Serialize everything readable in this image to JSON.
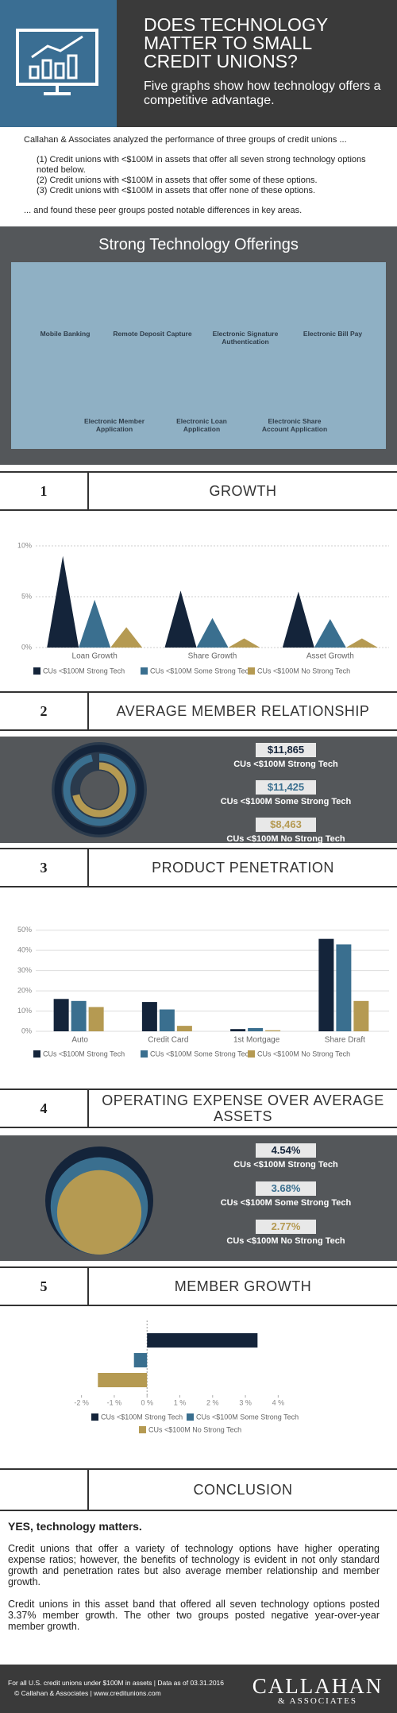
{
  "header": {
    "title": "DOES TECHNOLOGY MATTER TO SMALL CREDIT UNIONS?",
    "subtitle": "Five graphs show how technology offers a competitive advantage."
  },
  "intro": {
    "lead": "Callahan & Associates analyzed the performance of three groups of credit unions ...",
    "items": [
      "(1) Credit unions with <$100M in assets that offer all seven strong technology options noted below.",
      "(2) Credit unions with <$100M in assets that offer some of these options.",
      "(3) Credit unions with <$100M in assets that offer none of these options."
    ],
    "closing": "... and found these peer groups posted notable differences in key areas."
  },
  "offerings": {
    "title": "Strong Technology Offerings",
    "items": [
      "Mobile Banking",
      "Remote Deposit Capture",
      "Electronic Signature Authentication",
      "Electronic Bill Pay",
      "Electronic Member Application",
      "Electronic Loan Application",
      "Electronic Share Account Application"
    ]
  },
  "sections": [
    {
      "number": "1",
      "title": "GROWTH"
    },
    {
      "number": "2",
      "title": "AVERAGE MEMBER RELATIONSHIP"
    },
    {
      "number": "3",
      "title": "PRODUCT PENETRATION"
    },
    {
      "number": "4",
      "title": "OPERATING EXPENSE OVER AVERAGE ASSETS"
    },
    {
      "number": "5",
      "title": "MEMBER GROWTH"
    }
  ],
  "chart_data": [
    {
      "type": "spike",
      "categories": [
        "Loan Growth",
        "Share Growth",
        "Asset Growth"
      ],
      "series": [
        {
          "name": "CUs <$100M Strong Tech",
          "color": "#14243a",
          "values": [
            9.0,
            5.6,
            5.5
          ]
        },
        {
          "name": "CUs <$100M Some Strong Tech",
          "color": "#3a6f8f",
          "values": [
            4.7,
            2.9,
            2.8
          ]
        },
        {
          "name": "CUs <$100M No Strong Tech",
          "color": "#b59a52",
          "values": [
            2.0,
            0.9,
            0.9
          ]
        }
      ],
      "ylim": [
        0,
        10
      ],
      "yticks": [
        {
          "value": 0,
          "label": "0%"
        },
        {
          "value": 5,
          "label": "5%"
        },
        {
          "value": 10,
          "label": "10%"
        }
      ],
      "grid": true
    },
    {
      "type": "rings",
      "categories": [
        "CUs <$100M Strong Tech",
        "CUs <$100M Some Strong Tech",
        "CUs <$100M No Strong Tech"
      ],
      "values": [
        11865,
        11425,
        8463
      ],
      "value_labels": [
        "$11,865",
        "$11,425",
        "$8,463"
      ],
      "colors": [
        "#14243a",
        "#3a6f8f",
        "#b59a52"
      ]
    },
    {
      "type": "bar",
      "categories": [
        "Auto",
        "Credit Card",
        "1st Mortgage",
        "Share Draft"
      ],
      "series": [
        {
          "name": "CUs <$100M Strong Tech",
          "color": "#14243a",
          "values": [
            16,
            14.5,
            1.1,
            45.7
          ]
        },
        {
          "name": "CUs <$100M Some Strong Tech",
          "color": "#3a6f8f",
          "values": [
            15,
            10.8,
            1.6,
            43
          ]
        },
        {
          "name": "CUs <$100M No Strong Tech",
          "color": "#b59a52",
          "values": [
            12,
            2.7,
            0.5,
            15
          ]
        }
      ],
      "ylim": [
        0,
        55
      ],
      "yticks": [
        {
          "value": 0,
          "label": "0%"
        },
        {
          "value": 10,
          "label": "10%"
        },
        {
          "value": 20,
          "label": "20%"
        },
        {
          "value": 30,
          "label": "30%"
        },
        {
          "value": 40,
          "label": "40%"
        },
        {
          "value": 50,
          "label": "50%"
        }
      ],
      "grid": true
    },
    {
      "type": "circles",
      "categories": [
        "CUs <$100M Strong Tech",
        "CUs <$100M Some Strong Tech",
        "CUs <$100M No Strong Tech"
      ],
      "values": [
        4.54,
        3.68,
        2.77
      ],
      "value_labels": [
        "4.54%",
        "3.68%",
        "2.77%"
      ],
      "colors": [
        "#14243a",
        "#3a6f8f",
        "#b59a52"
      ]
    },
    {
      "type": "hbar",
      "series": [
        {
          "name": "CUs <$100M Strong Tech",
          "color": "#14243a",
          "values": [
            3.37
          ]
        },
        {
          "name": "CUs <$100M Some Strong Tech",
          "color": "#3a6f8f",
          "values": [
            -0.4
          ]
        },
        {
          "name": "CUs <$100M No Strong Tech",
          "color": "#b59a52",
          "values": [
            -1.5
          ]
        }
      ],
      "xlim": [
        -2.5,
        4.5
      ],
      "xticks": [
        {
          "value": -2,
          "label": "-2 %"
        },
        {
          "value": -1,
          "label": "-1 %"
        },
        {
          "value": 0,
          "label": "0 %"
        },
        {
          "value": 1,
          "label": "1 %"
        },
        {
          "value": 2,
          "label": "2 %"
        },
        {
          "value": 3,
          "label": "3 %"
        },
        {
          "value": 4,
          "label": "4 %"
        }
      ]
    }
  ],
  "conclusion": {
    "title": "CONCLUSION",
    "lead": "YES, technology matters.",
    "paragraphs": [
      "Credit unions that offer a variety of technology options have higher operating expense ratios; however, the benefits of technology is evident in not only standard growth and penetration rates but also average member relationship and member growth.",
      "Credit unions in this asset band that offered all seven technology options posted 3.37% member growth. The other two groups posted negative year-over-year member growth."
    ]
  },
  "footer": {
    "note": "For all U.S. credit unions under $100M in assets | Data as of 03.31.2016",
    "copyright": "© Callahan & Associates | www.creditunions.com",
    "logo": "CALLAHAN",
    "logo_sub": "& ASSOCIATES"
  }
}
